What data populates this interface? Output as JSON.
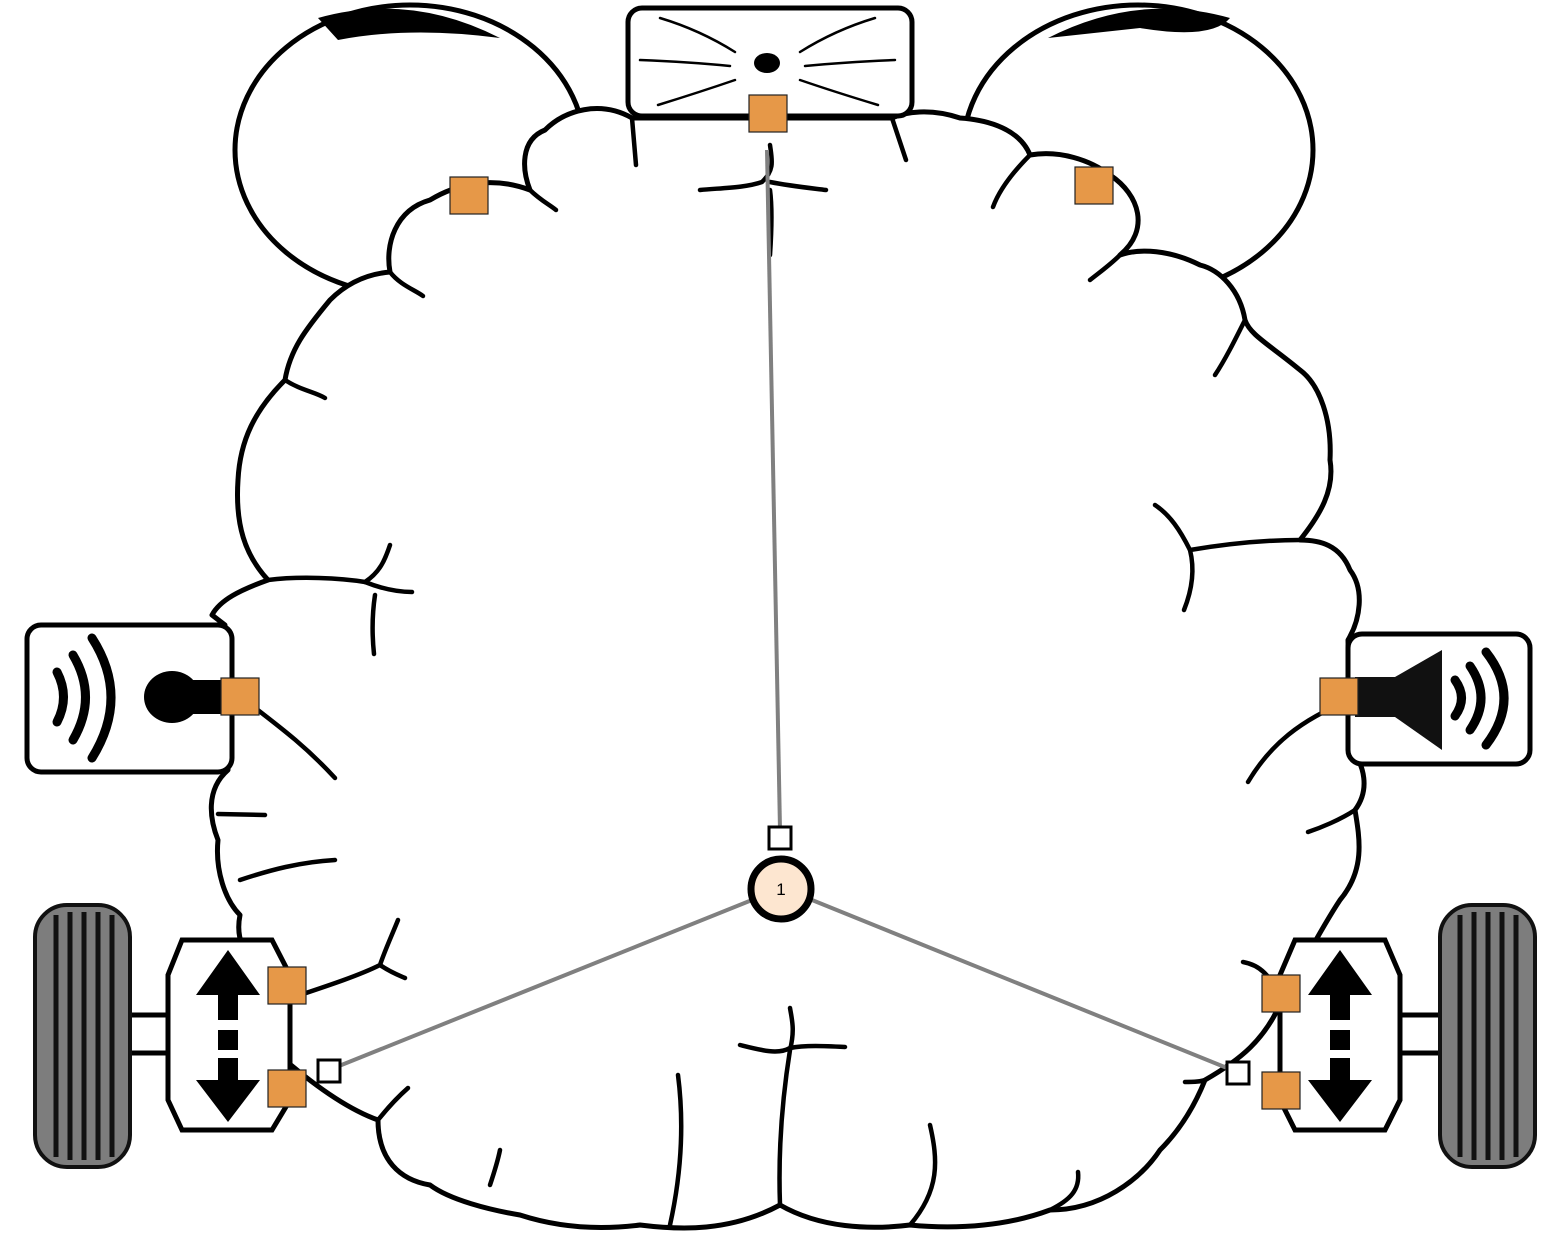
{
  "diagram": {
    "neuron": {
      "label": "1",
      "fill": "#fde6d0"
    },
    "colors": {
      "port": "#e69848",
      "wire": "#808080"
    },
    "components": [
      {
        "id": "nose-sensor",
        "icon": "whiskers-icon"
      },
      {
        "id": "microphone-sensor",
        "icon": "microphone-icon"
      },
      {
        "id": "speaker-output",
        "icon": "speaker-icon"
      },
      {
        "id": "left-motor",
        "icon": "motor-arrows-icon"
      },
      {
        "id": "right-motor",
        "icon": "motor-arrows-icon"
      },
      {
        "id": "left-wheel",
        "icon": "wheel-icon"
      },
      {
        "id": "right-wheel",
        "icon": "wheel-icon"
      },
      {
        "id": "left-eye",
        "icon": "eye-icon"
      },
      {
        "id": "right-eye",
        "icon": "eye-icon"
      }
    ],
    "connections": [
      {
        "from": "nose-sensor",
        "to": "neuron-1"
      },
      {
        "from": "neuron-1",
        "to": "left-motor"
      },
      {
        "from": "neuron-1",
        "to": "right-motor"
      }
    ]
  }
}
